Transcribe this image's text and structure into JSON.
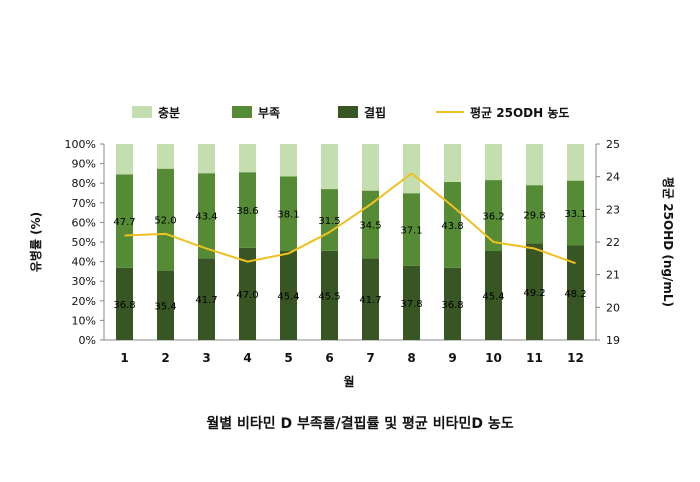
{
  "chart_data": {
    "type": "bar",
    "stacked": true,
    "title": "월별 비타민 D 부족률/결핍률 및 평균 비타민D 농도",
    "xlabel": "월",
    "ylabel": "유병률 (%)",
    "y2label": "평균 25OHD (ng/mL)",
    "categories": [
      "1",
      "2",
      "3",
      "4",
      "5",
      "6",
      "7",
      "8",
      "9",
      "10",
      "11",
      "12"
    ],
    "ylim": [
      0,
      100
    ],
    "y_ticks": [
      "0%",
      "10%",
      "20%",
      "30%",
      "40%",
      "50%",
      "60%",
      "70%",
      "80%",
      "90%",
      "100%"
    ],
    "y2lim": [
      19,
      25
    ],
    "y2_ticks": [
      "19",
      "20",
      "21",
      "22",
      "23",
      "24",
      "25"
    ],
    "legend_position": "top",
    "grid": false,
    "series": [
      {
        "name": "결핍",
        "kind": "bar",
        "color": "#375623",
        "values": [
          36.8,
          35.4,
          41.7,
          47.0,
          45.4,
          45.5,
          41.7,
          37.8,
          36.8,
          45.4,
          49.2,
          48.2
        ],
        "labels": [
          "36.8",
          "35.4",
          "41.7",
          "47.0",
          "45.4",
          "45.5",
          "41.7",
          "37.8",
          "36.8",
          "45.4",
          "49.2",
          "48.2"
        ]
      },
      {
        "name": "부족",
        "kind": "bar",
        "color": "#558b35",
        "values": [
          47.7,
          52.0,
          43.4,
          38.6,
          38.1,
          31.5,
          34.5,
          37.1,
          43.8,
          36.2,
          29.8,
          33.1
        ],
        "labels": [
          "47.7",
          "52.0",
          "43.4",
          "38.6",
          "38.1",
          "31.5",
          "34.5",
          "37.1",
          "43.8",
          "36.2",
          "29.8",
          "33.1"
        ]
      },
      {
        "name": "충분",
        "kind": "bar",
        "color": "#c4deb0",
        "values": [
          15.5,
          12.6,
          14.9,
          14.4,
          16.5,
          23.0,
          23.8,
          25.1,
          19.4,
          18.4,
          21.0,
          18.7
        ]
      },
      {
        "name": "평균 25ODH 농도",
        "kind": "line",
        "axis": "right",
        "color": "#f0c020",
        "values": [
          22.2,
          22.25,
          21.8,
          21.4,
          21.65,
          22.3,
          23.15,
          24.1,
          23.1,
          22.0,
          21.8,
          21.35
        ]
      }
    ],
    "legend_order": [
      "충분",
      "부족",
      "결핍",
      "평균 25ODH 농도"
    ]
  }
}
